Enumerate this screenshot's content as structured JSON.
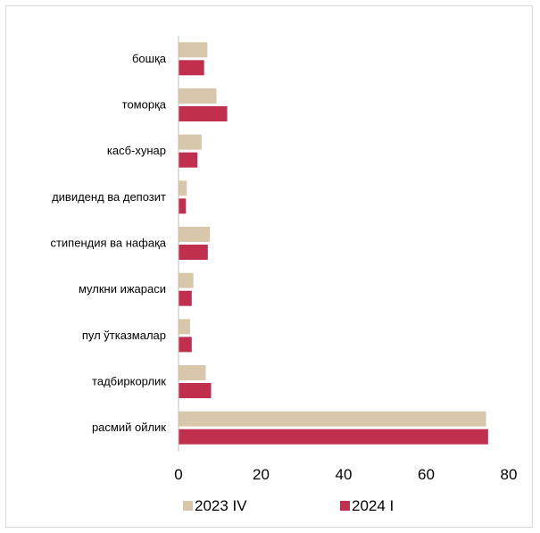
{
  "chart_data": {
    "type": "bar",
    "orientation": "horizontal",
    "categories": [
      "бошқа",
      "томорқа",
      "касб-хунар",
      "дивиденд ва депозит",
      "стипендия ва нафақа",
      "мулкни ижараси",
      "пул ўтказмалар",
      "тадбиркорлик",
      "расмий ойлик"
    ],
    "series": [
      {
        "name": "2023 IV",
        "color": "#d9c7ab",
        "values": [
          7.0,
          9.2,
          5.6,
          2.0,
          7.6,
          3.6,
          2.8,
          6.6,
          74.5
        ]
      },
      {
        "name": "2024 I",
        "color": "#c0304e",
        "values": [
          6.2,
          11.8,
          4.6,
          1.8,
          7.1,
          3.2,
          3.2,
          7.9,
          75.0
        ]
      }
    ],
    "xlim": [
      0,
      80
    ],
    "xticks": [
      0,
      20,
      40,
      60,
      80
    ],
    "grid": false,
    "legend": "bottom"
  }
}
